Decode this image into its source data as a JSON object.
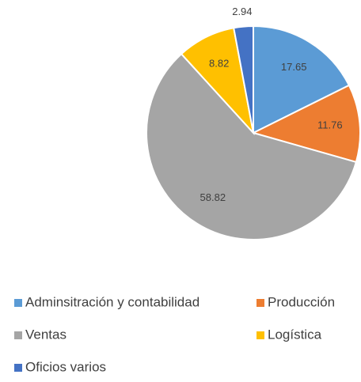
{
  "chart_data": {
    "type": "pie",
    "categories": [
      "Adminsitración y contabilidad",
      "Producción",
      "Ventas",
      "Logística",
      "Oficios varios"
    ],
    "values": [
      17.65,
      11.76,
      58.82,
      8.82,
      2.94
    ],
    "colors": [
      "#5b9bd5",
      "#ed7d31",
      "#a5a5a5",
      "#ffc000",
      "#4472c4"
    ],
    "legend": "bottom"
  }
}
